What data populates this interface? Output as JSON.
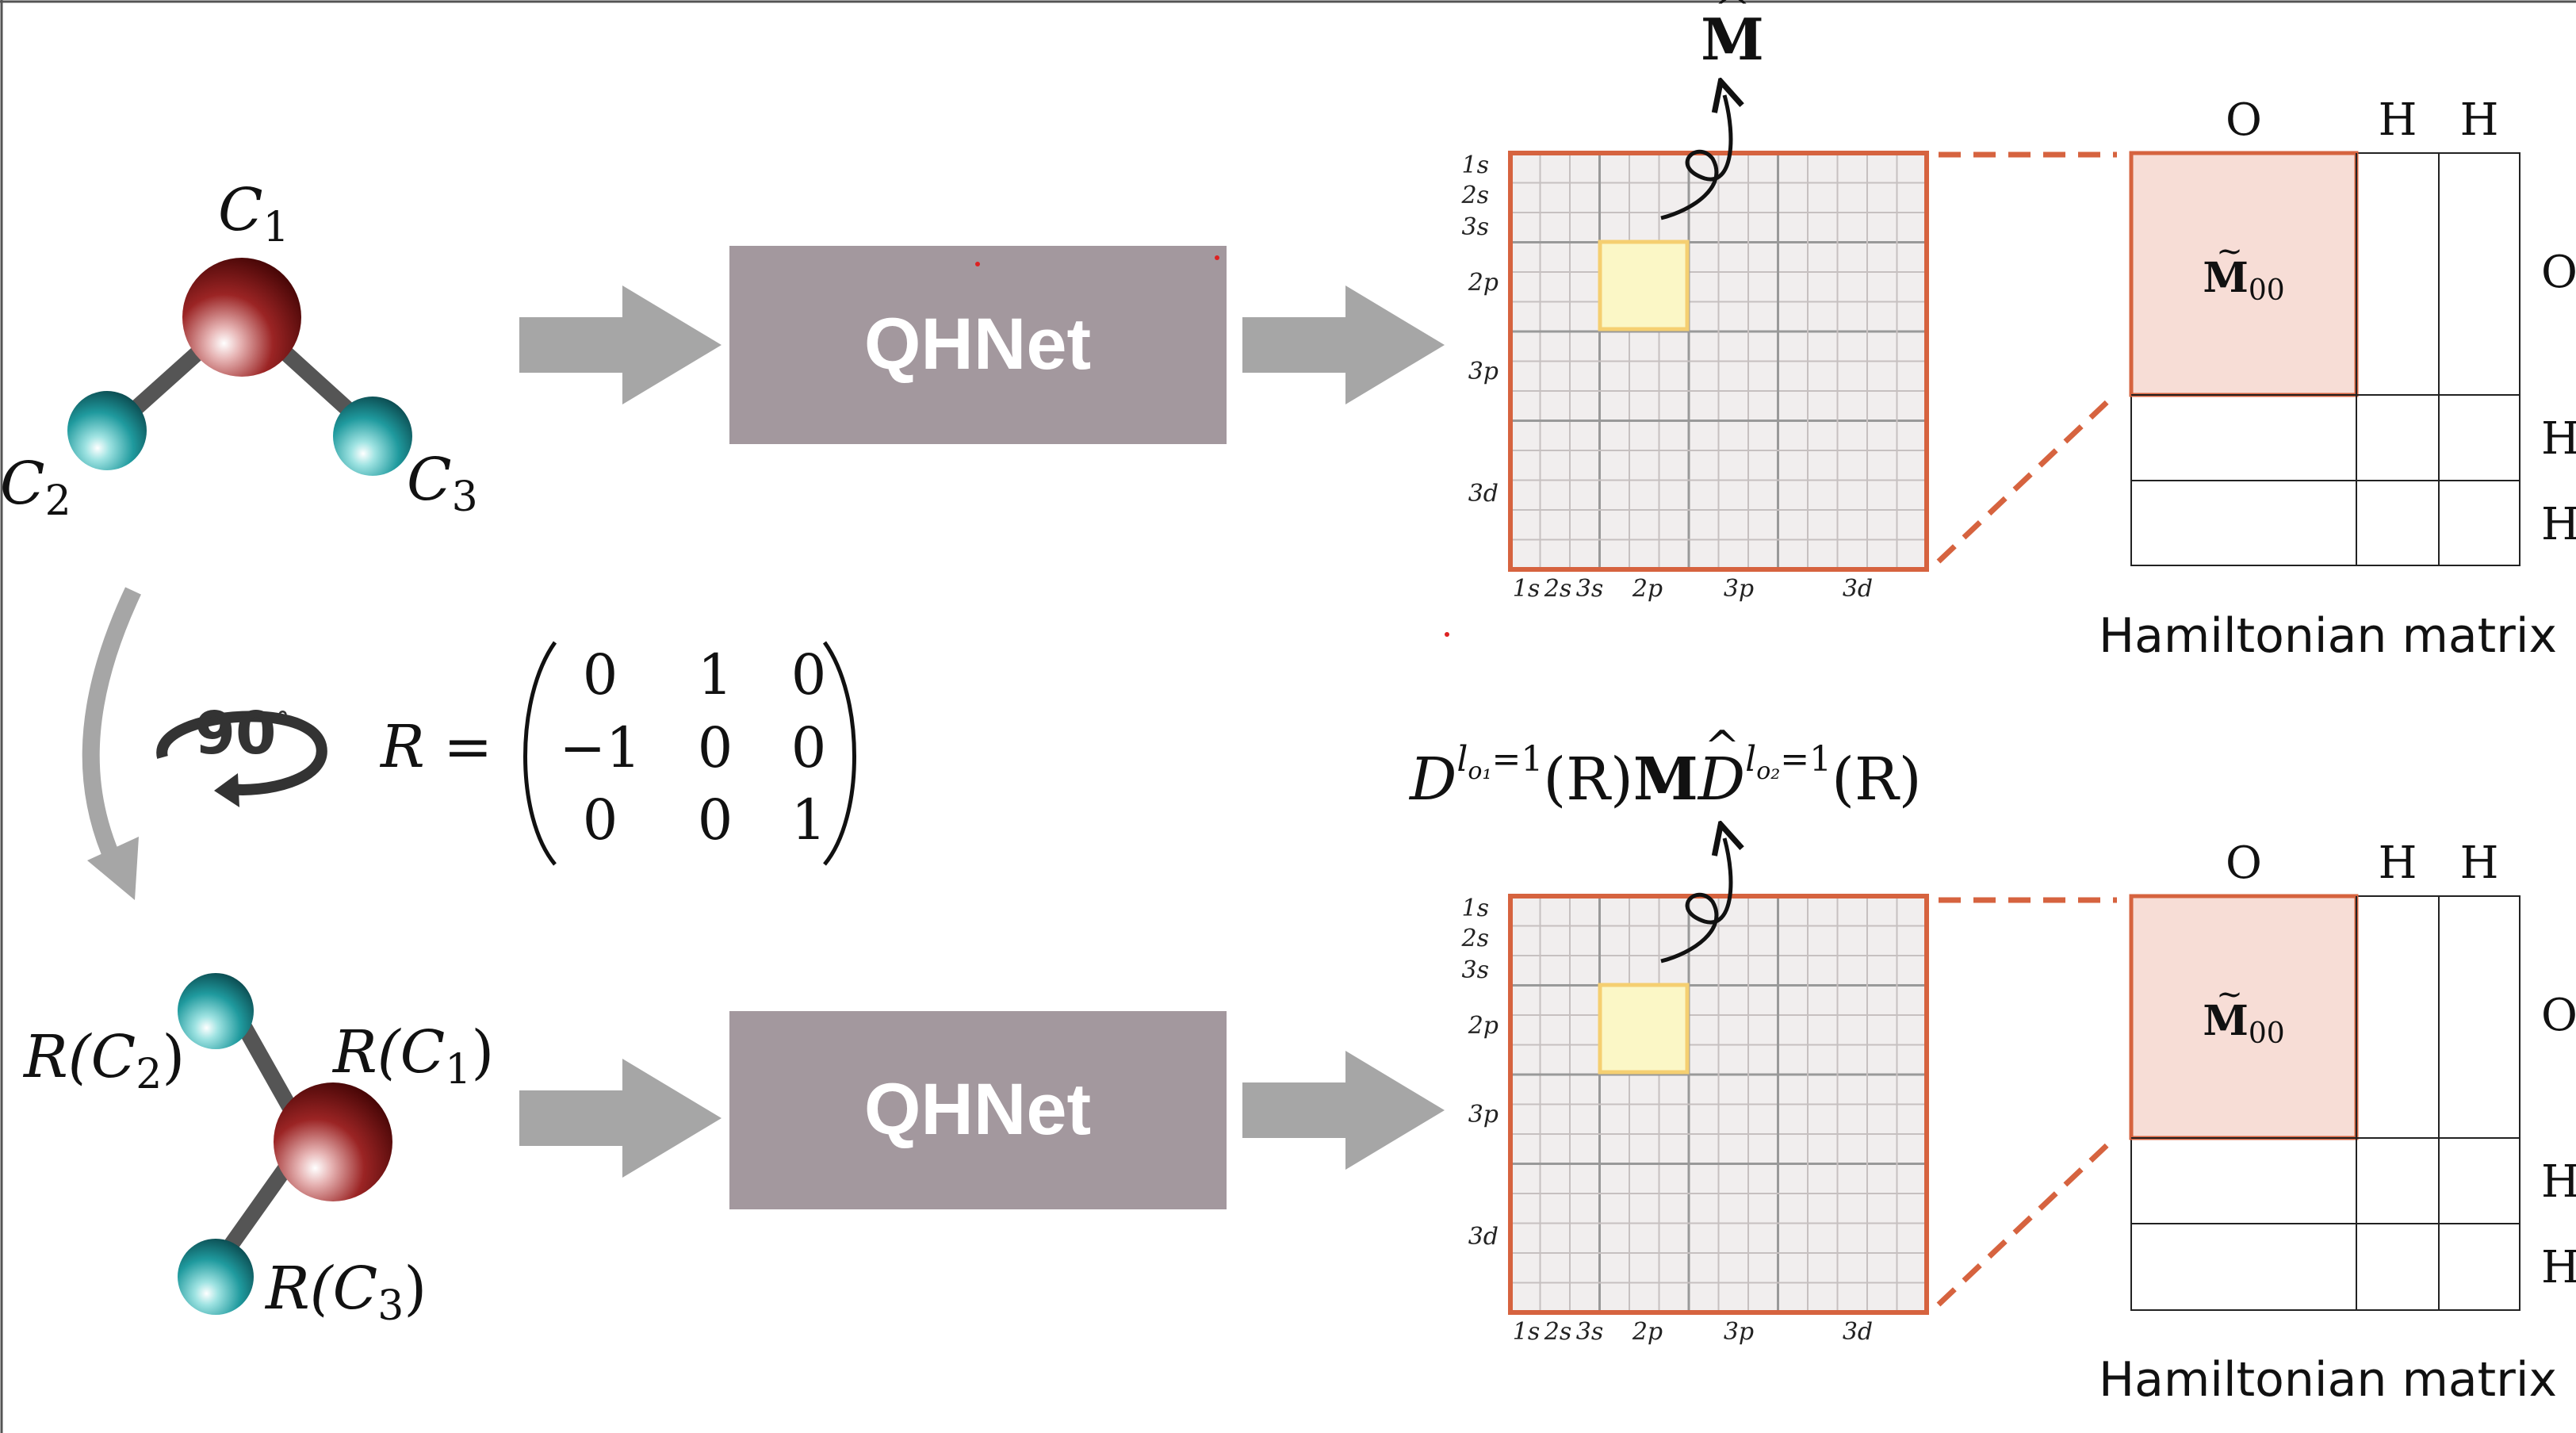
{
  "colors": {
    "arrow_fill": "#a6a6a6",
    "qhnet_box": "#a3989e",
    "grid_frame": "#d6633f",
    "grid_fill": "#f1eeee",
    "block_highlight": "#fbf7c6",
    "block_highlight_stroke": "#f5cf71",
    "hm_block_fill": "#f7ddd6",
    "oxygen_atom": "#8d1a1a",
    "hydrogen_atom": "#1b8e93"
  },
  "top": {
    "molecule": {
      "label_c1_base": "C",
      "label_c1_sub": "1",
      "label_c2_base": "C",
      "label_c2_sub": "2",
      "label_c3_base": "C",
      "label_c3_sub": "3"
    },
    "qhnet_label": "QHNet",
    "matrix_label_symbol": "M",
    "hamiltonian": {
      "atoms_top": [
        "O",
        "H",
        "H"
      ],
      "atoms_side": [
        "O",
        "H",
        "H"
      ],
      "block_symbol": "M",
      "block_sub": "00",
      "caption": "Hamiltonian matrix"
    }
  },
  "bottom": {
    "molecule": {
      "label_c1": "R(C",
      "label_c1_sub": "1",
      "label_c2": "R(C",
      "label_c2_sub": "2",
      "label_c3": "R(C",
      "label_c3_sub": "3",
      "close_paren": ")"
    },
    "qhnet_label": "QHNet",
    "equivariance_formula": {
      "D1": "D",
      "exp1_l": "l",
      "exp1_sub": "o₁",
      "exp1_eq": "=1",
      "arg1": "(R)",
      "M": "M",
      "D2": "D",
      "exp2_l": "l",
      "exp2_sub": "o₂",
      "exp2_eq": "=1",
      "arg2": "(R)"
    },
    "hamiltonian": {
      "atoms_top": [
        "O",
        "H",
        "H"
      ],
      "atoms_side": [
        "O",
        "H",
        "H"
      ],
      "block_symbol": "M",
      "block_sub": "00",
      "caption": "Hamiltonian matrix"
    }
  },
  "rotation": {
    "icon_label": "90",
    "degree_sign": "°",
    "matrix_name": "R =",
    "matrix": [
      [
        "0",
        "1",
        "0"
      ],
      [
        "−1",
        "0",
        "0"
      ],
      [
        "0",
        "0",
        "1"
      ]
    ]
  },
  "orbitals": {
    "row_labels": [
      "1s",
      "2s",
      "3s",
      "2p",
      "3p",
      "3d"
    ],
    "col_labels": [
      "1s",
      "2s",
      "3s",
      "2p",
      "3p",
      "3d"
    ]
  }
}
